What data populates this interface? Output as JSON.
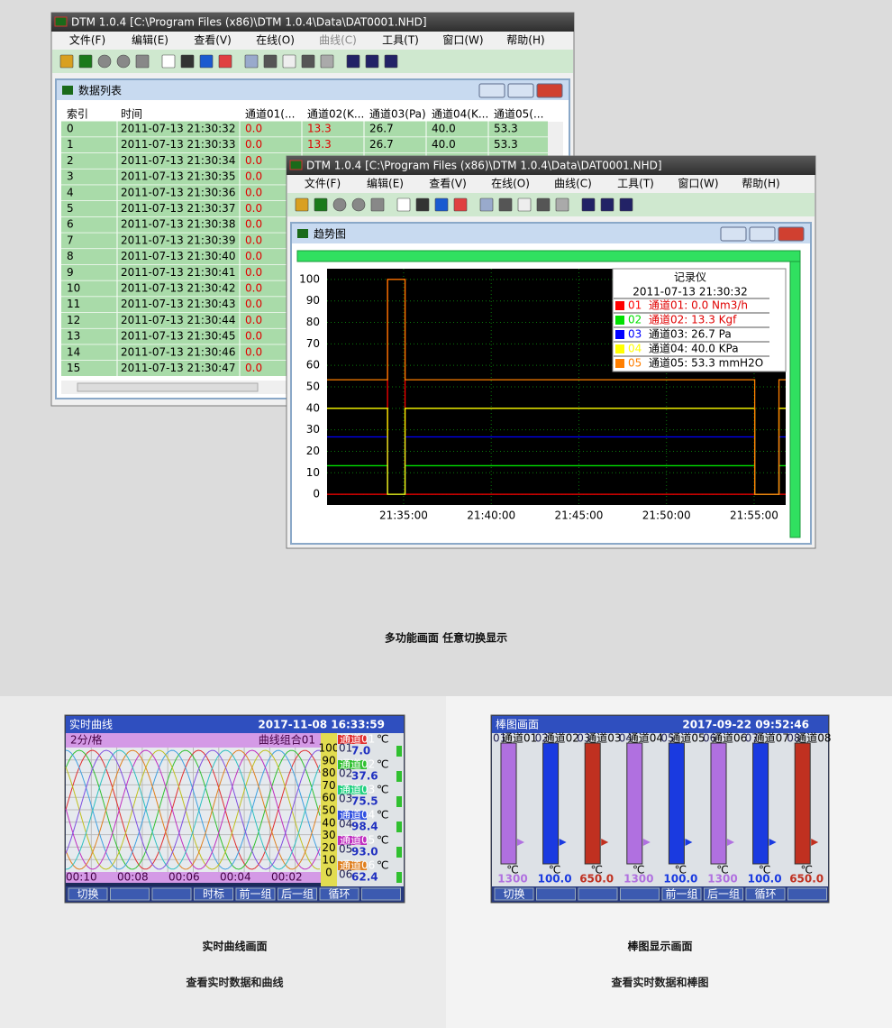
{
  "window_list": {
    "title": "DTM 1.0.4 [C:\\Program Files (x86)\\DTM 1.0.4\\Data\\DAT0001.NHD]",
    "menu": [
      "文件(F)",
      "编辑(E)",
      "查看(V)",
      "在线(O)",
      "曲线(C)",
      "工具(T)",
      "窗口(W)",
      "帮助(H)"
    ],
    "child_title": "数据列表",
    "columns": [
      "索引",
      "时间",
      "通道01(...",
      "通道02(K...",
      "通道03(Pa)",
      "通道04(K...",
      "通道05(..."
    ],
    "rows": [
      [
        "0",
        "2011-07-13 21:30:32",
        "0.0",
        "13.3",
        "26.7",
        "40.0",
        "53.3"
      ],
      [
        "1",
        "2011-07-13 21:30:33",
        "0.0",
        "13.3",
        "26.7",
        "40.0",
        "53.3"
      ],
      [
        "2",
        "2011-07-13 21:30:34",
        "0.0"
      ],
      [
        "3",
        "2011-07-13 21:30:35",
        "0.0"
      ],
      [
        "4",
        "2011-07-13 21:30:36",
        "0.0"
      ],
      [
        "5",
        "2011-07-13 21:30:37",
        "0.0"
      ],
      [
        "6",
        "2011-07-13 21:30:38",
        "0.0"
      ],
      [
        "7",
        "2011-07-13 21:30:39",
        "0.0"
      ],
      [
        "8",
        "2011-07-13 21:30:40",
        "0.0"
      ],
      [
        "9",
        "2011-07-13 21:30:41",
        "0.0"
      ],
      [
        "10",
        "2011-07-13 21:30:42",
        "0.0"
      ],
      [
        "11",
        "2011-07-13 21:30:43",
        "0.0"
      ],
      [
        "12",
        "2011-07-13 21:30:44",
        "0.0"
      ],
      [
        "13",
        "2011-07-13 21:30:45",
        "0.0"
      ],
      [
        "14",
        "2011-07-13 21:30:46",
        "0.0"
      ],
      [
        "15",
        "2011-07-13 21:30:47",
        "0.0"
      ]
    ]
  },
  "window_trend": {
    "title": "DTM 1.0.4 [C:\\Program Files (x86)\\DTM 1.0.4\\Data\\DAT0001.NHD]",
    "menu": [
      "文件(F)",
      "编辑(E)",
      "查看(V)",
      "在线(O)",
      "曲线(C)",
      "工具(T)",
      "窗口(W)",
      "帮助(H)"
    ],
    "child_title": "趋势图"
  },
  "chart_data": {
    "type": "line",
    "legend_title": "记录仪",
    "legend_time": "2011-07-13 21:30:32",
    "x": [
      "21:30:38",
      "21:34:05",
      "21:34:05",
      "21:35:05",
      "21:35:05",
      "21:55:02",
      "21:55:02",
      "21:56:25",
      "21:56:25",
      "21:56:48"
    ],
    "xlim": [
      "21:30:38",
      "21:56:48"
    ],
    "xticks": [
      "21:35:00",
      "21:40:00",
      "21:45:00",
      "21:50:00",
      "21:55:00"
    ],
    "ylim": [
      -5,
      105
    ],
    "yticks": [
      0,
      10,
      20,
      30,
      40,
      50,
      60,
      70,
      80,
      90,
      100
    ],
    "grid": true,
    "series": [
      {
        "code": "01",
        "name": "通道01: 0.0 Nm3/h",
        "color": "#ff0000",
        "text_color": "#e00000",
        "values": [
          0,
          0,
          100,
          100,
          0,
          0,
          0,
          0,
          0,
          0
        ]
      },
      {
        "code": "02",
        "name": "通道02: 13.3 Kgf",
        "color": "#00e000",
        "text_color": "#e00000",
        "values": [
          13.3,
          13.3,
          0,
          0,
          13.3,
          13.3,
          0,
          0,
          13.3,
          13.3
        ]
      },
      {
        "code": "03",
        "name": "通道03: 26.7 Pa",
        "color": "#0000ff",
        "text_color": "#000000",
        "values": [
          26.7,
          26.7,
          0,
          0,
          26.7,
          26.7,
          0,
          0,
          26.7,
          26.7
        ]
      },
      {
        "code": "04",
        "name": "通道04: 40.0 KPa",
        "color": "#ffff00",
        "text_color": "#000000",
        "values": [
          40,
          40,
          0,
          0,
          40,
          40,
          0,
          0,
          40,
          40
        ]
      },
      {
        "code": "05",
        "name": "通道05: 53.3 mmH2O",
        "color": "#ff7f00",
        "text_color": "#000000",
        "values": [
          53.3,
          53.3,
          100,
          100,
          53.3,
          53.3,
          0,
          0,
          53.3,
          53.3
        ]
      }
    ]
  },
  "heading": "多功能画面 任意切换显示",
  "curve_screen": {
    "title": "实时曲线",
    "datetime": "2017-11-08 16:33:59",
    "scale": "2分/格",
    "group": "曲线组合01",
    "axis_labels": [
      "100",
      "90",
      "80",
      "70",
      "60",
      "50",
      "40",
      "30",
      "20",
      "10",
      "0"
    ],
    "time_labels": [
      "00:10",
      "00:08",
      "00:06",
      "00:04",
      "00:02"
    ],
    "channels": [
      {
        "code": "01",
        "name": "通道01",
        "unit": "℃",
        "value": "7.0",
        "color": "#e03030"
      },
      {
        "code": "02",
        "name": "通道02",
        "unit": "℃",
        "value": "37.6",
        "color": "#30c030"
      },
      {
        "code": "03",
        "name": "通道03",
        "unit": "℃",
        "value": "75.5",
        "color": "#20d080"
      },
      {
        "code": "04",
        "name": "通道04",
        "unit": "℃",
        "value": "98.4",
        "color": "#3050e0"
      },
      {
        "code": "05",
        "name": "通道05",
        "unit": "℃",
        "value": "93.0",
        "color": "#c030c0"
      },
      {
        "code": "06",
        "name": "通道06",
        "unit": "℃",
        "value": "62.4",
        "color": "#e08020"
      }
    ],
    "buttons": [
      "切换",
      null,
      null,
      "时标",
      "前一组",
      "后一组",
      "循环",
      null
    ],
    "caption": "实时曲线画面",
    "subcaption": "查看实时数据和曲线"
  },
  "bar_screen": {
    "title": "棒图画面",
    "datetime": "2017-09-22 09:52:46",
    "channels": [
      {
        "code": "01",
        "name": "通道01",
        "unit": "℃",
        "value": "1300",
        "color": "#b070e0"
      },
      {
        "code": "02",
        "name": "通道02",
        "unit": "℃",
        "value": "100.0",
        "color": "#1a3ae0"
      },
      {
        "code": "03",
        "name": "通道03",
        "unit": "℃",
        "value": "650.0",
        "color": "#c03020"
      },
      {
        "code": "04",
        "name": "通道04",
        "unit": "℃",
        "value": "1300",
        "color": "#b070e0"
      },
      {
        "code": "05",
        "name": "通道05",
        "unit": "℃",
        "value": "100.0",
        "color": "#1a3ae0"
      },
      {
        "code": "06",
        "name": "通道06",
        "unit": "℃",
        "value": "1300",
        "color": "#b070e0"
      },
      {
        "code": "07",
        "name": "通道07",
        "unit": "℃",
        "value": "100.0",
        "color": "#1a3ae0"
      },
      {
        "code": "08",
        "name": "通道08",
        "unit": "℃",
        "value": "650.0",
        "color": "#c03020"
      }
    ],
    "buttons": [
      "切换",
      null,
      null,
      null,
      "前一组",
      "后一组",
      "循环",
      null
    ],
    "caption": "棒图显示画面",
    "subcaption": "查看实时数据和棒图"
  }
}
